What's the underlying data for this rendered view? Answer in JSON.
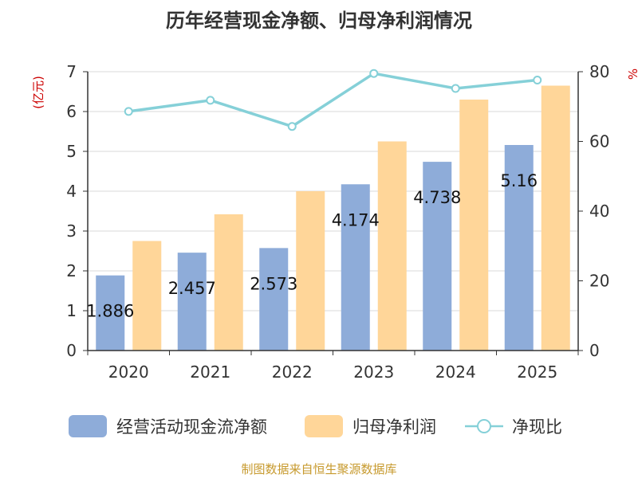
{
  "chart_data": {
    "type": "bar",
    "title": "历年经营现金净额、归母净利润情况",
    "categories": [
      "2020",
      "2021",
      "2022",
      "2023",
      "2024",
      "2025"
    ],
    "series": [
      {
        "name": "经营活动现金流净额",
        "axis": "left",
        "color": "#8eacd9",
        "values": [
          1.886,
          2.457,
          2.573,
          4.174,
          4.738,
          5.16
        ]
      },
      {
        "name": "归母净利润",
        "axis": "left",
        "color": "#ffd699",
        "values": [
          2.75,
          3.42,
          4.0,
          5.25,
          6.3,
          6.65
        ]
      },
      {
        "name": "净现比",
        "type": "line",
        "axis": "right",
        "color": "#85d0d8",
        "values": [
          68.6,
          71.8,
          64.3,
          79.5,
          75.2,
          77.6
        ]
      }
    ],
    "data_labels": [
      "1.886",
      "2.457",
      "2.573",
      "4.174",
      "4.738",
      "5.16"
    ],
    "ylabel": "(亿元)",
    "y2label": "%",
    "ylim": [
      0,
      7
    ],
    "y2lim": [
      0,
      80
    ],
    "yticks": [
      "0",
      "1",
      "2",
      "3",
      "4",
      "5",
      "6",
      "7"
    ],
    "y2ticks": [
      "0",
      "20",
      "40",
      "60",
      "80"
    ],
    "grid": true,
    "legend_position": "bottom",
    "source": "制图数据来自恒生聚源数据库"
  }
}
